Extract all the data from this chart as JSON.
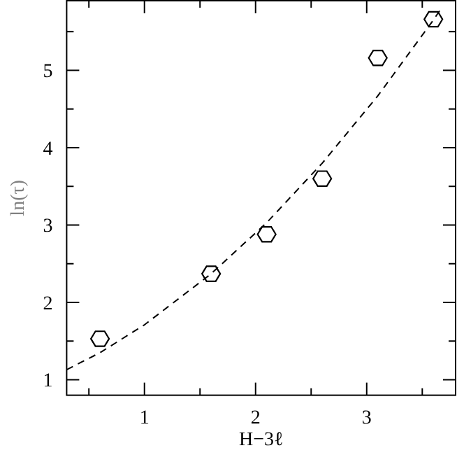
{
  "chart_data": {
    "type": "scatter",
    "xlabel": "H−3ℓ",
    "ylabel": "ln(τ)",
    "xlim": [
      0.3,
      3.8
    ],
    "ylim": [
      0.8,
      5.9
    ],
    "xticks": [
      {
        "value": 0.5,
        "label": null
      },
      1,
      {
        "value": 1.5,
        "label": null
      },
      2,
      {
        "value": 2.5,
        "label": null
      },
      3,
      {
        "value": 3.5,
        "label": null
      }
    ],
    "yticks": [
      1,
      {
        "value": 1.5,
        "label": null
      },
      2,
      {
        "value": 2.5,
        "label": null
      },
      3,
      {
        "value": 3.5,
        "label": null
      },
      4,
      {
        "value": 4.5,
        "label": null
      },
      5,
      {
        "value": 5.5,
        "label": null
      }
    ],
    "grid": false,
    "series": [
      {
        "color": "#000000",
        "x": [
          0.6,
          1.6,
          2.1,
          2.6,
          3.1,
          3.6
        ],
        "values": [
          1.53,
          2.37,
          2.88,
          3.6,
          5.16,
          5.66
        ]
      },
      {
        "type": "line",
        "color": "#000000",
        "line_style": "dashed",
        "marker": "none",
        "x": [
          0.3,
          0.6,
          1.0,
          1.6,
          2.1,
          2.6,
          3.1,
          3.6,
          3.67
        ],
        "values": [
          1.13,
          1.35,
          1.71,
          2.37,
          3.03,
          3.8,
          4.67,
          5.65,
          5.8
        ]
      }
    ]
  }
}
